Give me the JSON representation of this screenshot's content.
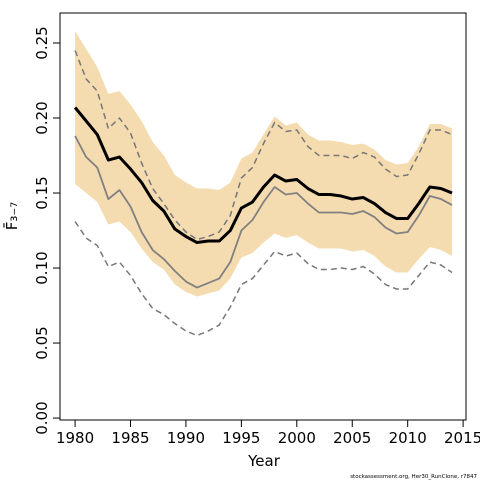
{
  "chart_data": {
    "type": "line",
    "xlabel": "Year",
    "ylabel": "F̄₃₋₇",
    "footnote": "stockassessment.org, Her30_RunClone, r7847",
    "x": [
      1980,
      1981,
      1982,
      1983,
      1984,
      1985,
      1986,
      1987,
      1988,
      1989,
      1990,
      1991,
      1992,
      1993,
      1994,
      1995,
      1996,
      1997,
      1998,
      1999,
      2000,
      2001,
      2002,
      2003,
      2004,
      2005,
      2006,
      2007,
      2008,
      2009,
      2010,
      2011,
      2012,
      2013,
      2014
    ],
    "band": {
      "color": "#f5dcb0",
      "upper": [
        0.258,
        0.246,
        0.234,
        0.216,
        0.218,
        0.209,
        0.198,
        0.184,
        0.175,
        0.162,
        0.157,
        0.153,
        0.153,
        0.152,
        0.157,
        0.173,
        0.177,
        0.189,
        0.201,
        0.195,
        0.197,
        0.189,
        0.185,
        0.185,
        0.184,
        0.182,
        0.183,
        0.179,
        0.172,
        0.169,
        0.17,
        0.181,
        0.196,
        0.196,
        0.193
      ],
      "lower": [
        0.156,
        0.15,
        0.144,
        0.129,
        0.131,
        0.124,
        0.113,
        0.104,
        0.099,
        0.089,
        0.084,
        0.081,
        0.083,
        0.085,
        0.093,
        0.107,
        0.11,
        0.117,
        0.123,
        0.12,
        0.122,
        0.117,
        0.113,
        0.113,
        0.113,
        0.111,
        0.112,
        0.108,
        0.101,
        0.097,
        0.097,
        0.106,
        0.114,
        0.112,
        0.108
      ]
    },
    "series": [
      {
        "color": "#777777",
        "dashed": true,
        "linewidth": 1.5,
        "values": [
          0.245,
          0.226,
          0.218,
          0.193,
          0.2,
          0.19,
          0.17,
          0.153,
          0.143,
          0.132,
          0.124,
          0.119,
          0.121,
          0.124,
          0.135,
          0.16,
          0.167,
          0.183,
          0.197,
          0.191,
          0.192,
          0.181,
          0.175,
          0.175,
          0.175,
          0.173,
          0.177,
          0.174,
          0.166,
          0.161,
          0.162,
          0.176,
          0.192,
          0.192,
          0.189
        ]
      },
      {
        "color": "#777777",
        "dashed": true,
        "linewidth": 1.5,
        "values": [
          0.131,
          0.12,
          0.115,
          0.101,
          0.104,
          0.095,
          0.083,
          0.073,
          0.069,
          0.063,
          0.058,
          0.055,
          0.058,
          0.062,
          0.074,
          0.089,
          0.093,
          0.102,
          0.111,
          0.108,
          0.11,
          0.103,
          0.099,
          0.099,
          0.1,
          0.099,
          0.101,
          0.096,
          0.089,
          0.086,
          0.086,
          0.095,
          0.104,
          0.102,
          0.097
        ]
      },
      {
        "color": "#808080",
        "dashed": false,
        "linewidth": 1.8,
        "values": [
          0.188,
          0.174,
          0.167,
          0.146,
          0.152,
          0.141,
          0.124,
          0.112,
          0.106,
          0.098,
          0.091,
          0.087,
          0.09,
          0.093,
          0.104,
          0.125,
          0.132,
          0.144,
          0.154,
          0.149,
          0.15,
          0.143,
          0.137,
          0.137,
          0.137,
          0.136,
          0.138,
          0.134,
          0.127,
          0.123,
          0.124,
          0.135,
          0.148,
          0.146,
          0.142
        ]
      },
      {
        "color": "#000000",
        "dashed": false,
        "linewidth": 3,
        "values": [
          0.207,
          0.198,
          0.189,
          0.172,
          0.174,
          0.166,
          0.157,
          0.145,
          0.138,
          0.126,
          0.121,
          0.117,
          0.118,
          0.118,
          0.125,
          0.14,
          0.144,
          0.154,
          0.162,
          0.158,
          0.159,
          0.153,
          0.149,
          0.149,
          0.148,
          0.146,
          0.147,
          0.143,
          0.137,
          0.133,
          0.133,
          0.143,
          0.154,
          0.153,
          0.15
        ]
      }
    ],
    "xlim": [
      1978.64,
      2015.26
    ],
    "xticks": [
      1980,
      1985,
      1990,
      1995,
      2000,
      2005,
      2010,
      2015
    ],
    "ylim": [
      -0.0013,
      0.27
    ],
    "yticks": [
      {
        "value": 0,
        "label": "0.00"
      },
      {
        "value": 0.05,
        "label": "0.05"
      },
      {
        "value": 0.1,
        "label": "0.10"
      },
      {
        "value": 0.15,
        "label": "0.15"
      },
      {
        "value": 0.2,
        "label": "0.20"
      },
      {
        "value": 0.25,
        "label": "0.25"
      }
    ]
  }
}
